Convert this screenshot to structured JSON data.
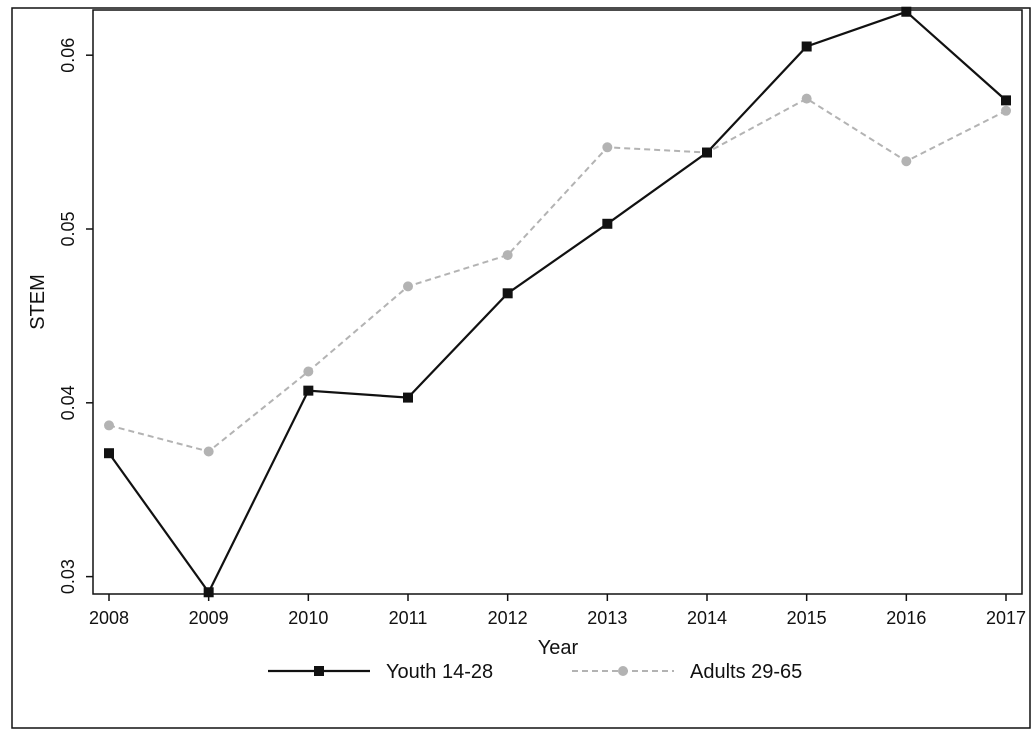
{
  "chart_data": {
    "type": "line",
    "title": "",
    "xlabel": "Year",
    "ylabel": "STEM",
    "x": [
      2008,
      2009,
      2010,
      2011,
      2012,
      2013,
      2014,
      2015,
      2016,
      2017
    ],
    "x_tick_labels": [
      "2008",
      "2009",
      "2010",
      "2011",
      "2012",
      "2013",
      "2014",
      "2015",
      "2016",
      "2017"
    ],
    "y_ticks": [
      0.03,
      0.04,
      0.05,
      0.06
    ],
    "y_tick_labels": [
      "0.03",
      "0.04",
      "0.05",
      "0.06"
    ],
    "ylim": [
      0.029,
      0.0626
    ],
    "grid": false,
    "legend_position": "bottom",
    "series": [
      {
        "name": "Youth 14-28",
        "color": "#111111",
        "line_style": "solid",
        "marker": "square",
        "values": [
          0.0371,
          0.0291,
          0.0407,
          0.0403,
          0.0463,
          0.0503,
          0.0544,
          0.0605,
          0.0625,
          0.0574
        ]
      },
      {
        "name": "Adults 29-65",
        "color": "#b3b3b3",
        "line_style": "dashed",
        "marker": "circle",
        "values": [
          0.0387,
          0.0372,
          0.0418,
          0.0467,
          0.0485,
          0.0547,
          0.0544,
          0.0575,
          0.0539,
          0.0568
        ]
      }
    ]
  }
}
